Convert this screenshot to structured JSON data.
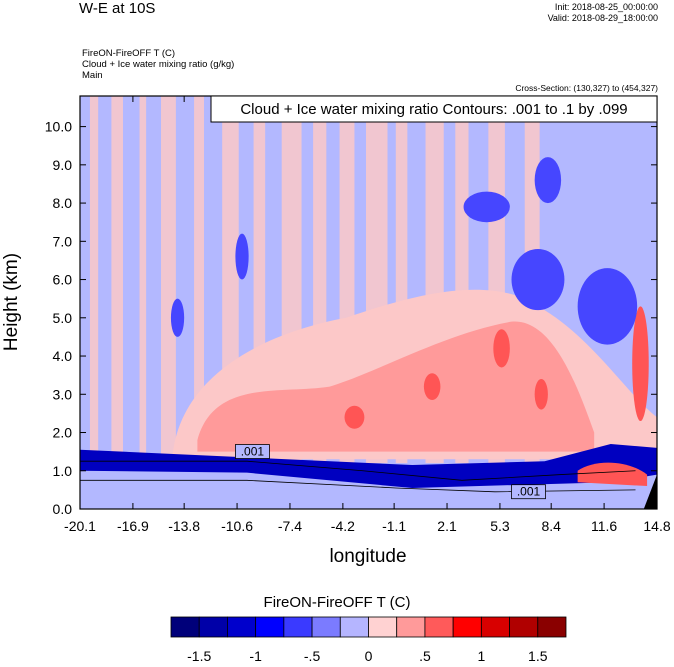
{
  "header": {
    "title": "W-E at 10S",
    "init": "Init: 2018-08-25_00:00:00",
    "valid": "Valid: 2018-08-29_18:00:00",
    "subtitle_lines": [
      "FireON-FireOFF T   (C)",
      "Cloud + Ice water mixing ratio   (g/kg)",
      "Main"
    ],
    "cross_section": "Cross-Section: (130,327) to (454,327)"
  },
  "chart_data": {
    "type": "heatmap",
    "contour_info": "Cloud + Ice water mixing ratio Contours: .001 to .1 by .099",
    "contour_labels": [
      ".001",
      ".001"
    ],
    "xlabel": "longitude",
    "ylabel": "Height (km)",
    "xticks": [
      "-20.1",
      "-16.9",
      "-13.8",
      "-10.6",
      "-7.4",
      "-4.2",
      "-1.1",
      "2.1",
      "5.3",
      "8.4",
      "11.6",
      "14.8"
    ],
    "yticks": [
      "0.0",
      "1.0",
      "2.0",
      "3.0",
      "4.0",
      "5.0",
      "6.0",
      "7.0",
      "8.0",
      "9.0",
      "10.0"
    ],
    "xlim": [
      -20.1,
      14.8
    ],
    "ylim": [
      0.0,
      10.8
    ],
    "field": "FireON-FireOFF T",
    "colorbar": {
      "title": "FireON-FireOFF T  (C)",
      "tick_labels": [
        "-1.5",
        "-1",
        "-.5",
        "0",
        ".5",
        "1",
        "1.5"
      ],
      "colors": [
        "#00007a",
        "#0000a8",
        "#0000cc",
        "#0000ff",
        "#3a3aff",
        "#7b7bff",
        "#b5b5ff",
        "#ffd2d2",
        "#ff9a9a",
        "#ff5a5a",
        "#ff0000",
        "#d80000",
        "#b00000",
        "#8a0000"
      ]
    },
    "palette": {
      "light_blue": "#b3b8ff",
      "light_pink": "#fcc8c8",
      "salmon": "#ff9a9a",
      "red": "#ff5555",
      "blue": "#4646ff",
      "dark_blue": "#0000c0"
    }
  }
}
